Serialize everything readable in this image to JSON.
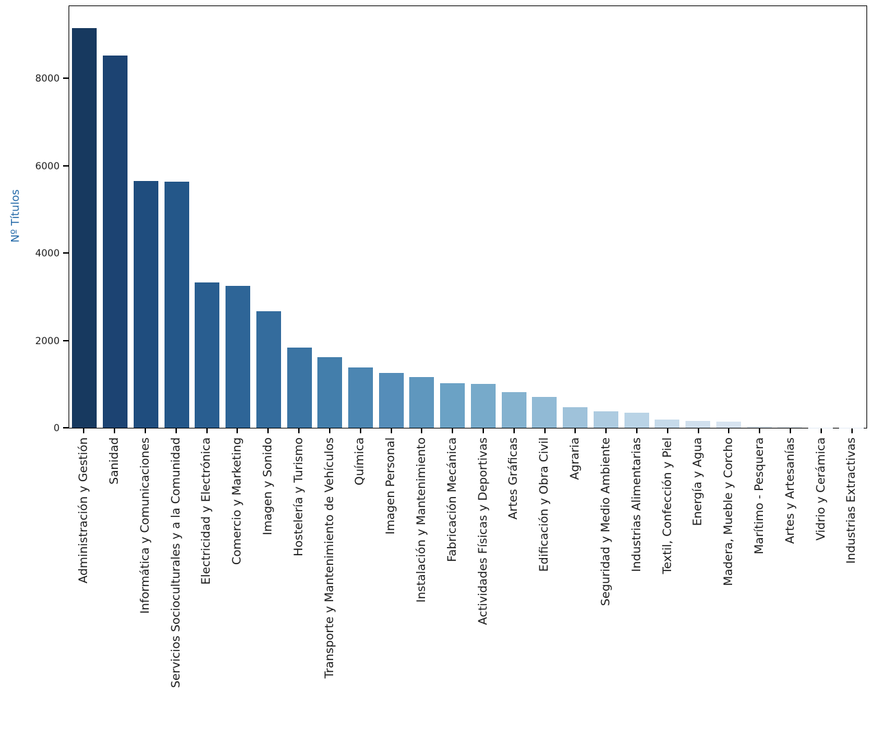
{
  "figure": {
    "background": "#ffffff",
    "frame_color": "#000000",
    "tick_label_color": "#1a1a1a"
  },
  "chart_data": {
    "type": "bar",
    "title": "",
    "xlabel": "",
    "ylabel": "Nº Títulos",
    "ylabel_color": "#2369a8",
    "ylim": [
      0,
      9640
    ],
    "yticks": [
      0,
      2000,
      4000,
      6000,
      8000
    ],
    "ytick_labels": [
      "0",
      "2000",
      "4000",
      "6000",
      "8000"
    ],
    "grid": false,
    "legend": "none",
    "x_tick_rotation": 90,
    "categories": [
      "Administración y Gestión",
      "Sanidad",
      "Informática y Comunicaciones",
      "Servicios Socioculturales y a la Comunidad",
      "Electricidad y Electrónica",
      "Comercio y Marketing",
      "Imagen y Sonido",
      "Hostelería y Turismo",
      "Transporte y Mantenimiento de Vehículos",
      "Química",
      "Imagen Personal",
      "Instalación y Mantenimiento",
      "Fabricación Mecánica",
      "Actividades Físicas y Deportivas",
      "Artes Gráficas",
      "Edificación y Obra Civil",
      "Agraria",
      "Seguridad y Medio Ambiente",
      "Industrias Alimentarias",
      "Textil, Confección y Piel",
      "Energía y Agua",
      "Madera, Mueble y Corcho",
      "Marítimo - Pesquera",
      "Artes y Artesanías",
      "Vidrio y Cerámica",
      "Industrias Extractivas"
    ],
    "values": [
      9150,
      8530,
      5650,
      5630,
      3330,
      3250,
      2670,
      1840,
      1625,
      1375,
      1250,
      1160,
      1020,
      1005,
      810,
      700,
      470,
      375,
      345,
      190,
      150,
      140,
      35,
      12,
      6,
      3
    ],
    "bar_colors": [
      "#17395f",
      "#1c4372",
      "#1f4d7e",
      "#245789",
      "#295e90",
      "#2e6597",
      "#346c9d",
      "#3b74a3",
      "#437eab",
      "#4c86b2",
      "#558db9",
      "#5f97be",
      "#6ba2c5",
      "#77aaca",
      "#84b2cf",
      "#91bad5",
      "#9fc2da",
      "#adcbe0",
      "#b9d3e6",
      "#c6daea",
      "#d0dfed",
      "#d7e3f0",
      "#dce7f2",
      "#dfe9f3",
      "#e2ebf4",
      "#e4ecf5"
    ]
  }
}
